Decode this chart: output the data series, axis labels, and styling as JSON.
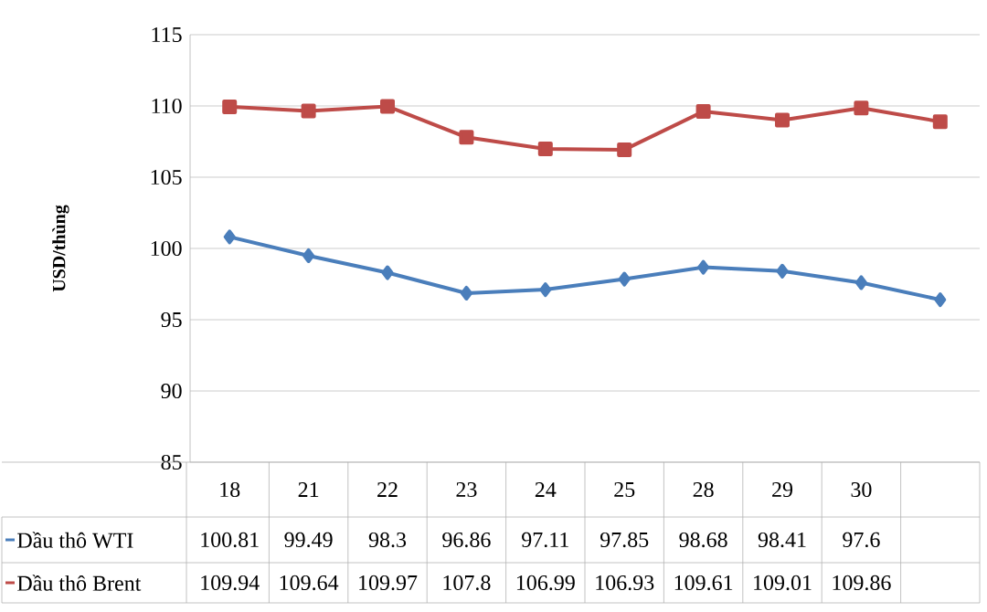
{
  "chart_data": {
    "type": "line",
    "ylabel": "USD/thùng",
    "categories": [
      "18",
      "21",
      "22",
      "23",
      "24",
      "25",
      "28",
      "29",
      "30",
      null
    ],
    "series": [
      {
        "name": "Dầu thô WTI",
        "color": "#4a7ebb",
        "marker": "diamond",
        "values": [
          100.81,
          99.49,
          98.3,
          96.86,
          97.11,
          97.85,
          98.68,
          98.41,
          97.6,
          96.4
        ],
        "value_labels": [
          "100.81",
          "99.49",
          "98.3",
          "96.86",
          "97.11",
          "97.85",
          "98.68",
          "98.41",
          "97.6",
          null
        ]
      },
      {
        "name": "Dầu thô Brent",
        "color": "#be4b48",
        "marker": "square",
        "values": [
          109.94,
          109.64,
          109.97,
          107.8,
          106.99,
          106.93,
          109.61,
          109.01,
          109.86,
          108.9
        ],
        "value_labels": [
          "109.94",
          "109.64",
          "109.97",
          "107.8",
          "106.99",
          "106.93",
          "109.61",
          "109.01",
          "109.86",
          null
        ]
      }
    ],
    "ylim": [
      85,
      115
    ],
    "yticks": [
      85,
      90,
      95,
      100,
      105,
      110,
      115
    ],
    "grid": "y",
    "legend": "bottom left"
  }
}
